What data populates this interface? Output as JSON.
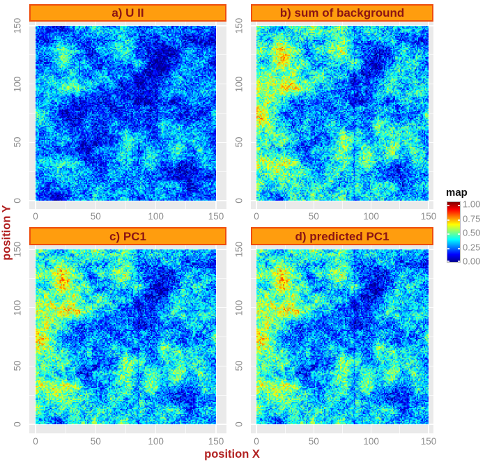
{
  "ui": {
    "strips": {
      "a": "a) U II",
      "b": "b) sum of background",
      "c": "c) PC1",
      "d": "d) predicted PC1"
    },
    "axes": {
      "x_title": "position X",
      "y_title": "position Y",
      "x_ticks": [
        "0",
        "50",
        "100",
        "150"
      ],
      "y_ticks": [
        "0",
        "50",
        "100",
        "150"
      ]
    },
    "legend": {
      "title": "map",
      "labels": [
        "1.00",
        "0.75",
        "0.50",
        "0.25",
        "0.00"
      ]
    },
    "colors": {
      "strip_fill": "#FF9D0E",
      "strip_border": "#EE4D0D",
      "strip_text": "#8B1414",
      "axis_title": "#B22222",
      "tick_label": "#8C8C8C",
      "panel_bg": "#EAEAEA",
      "legend_title": "#111111",
      "page_bg": "#FFFFFF"
    }
  },
  "chart_data": {
    "type": "heatmap",
    "layout": "2x2 facet grid, shared axes, single colorbar legend",
    "panels": [
      {
        "key": "a",
        "title": "a) U II",
        "description": "mostly low values (dark blue) with scattered cyan-green patches and rare orange specks; slightly warmer left edge"
      },
      {
        "key": "b",
        "title": "b) sum of background",
        "description": "higher overall; broad warm green-yellow region on left side with orange/red specks; faint dark vertical seam near x=85"
      },
      {
        "key": "c",
        "title": "c) PC1",
        "description": "warm yellow-green region on left, cyan speckle over blue elsewhere; faint vertical seam near x=85"
      },
      {
        "key": "d",
        "title": "d) predicted PC1",
        "description": "nearly identical to PC1 panel; faint vertical seam near x=85"
      }
    ],
    "x": {
      "label": "position X",
      "range": [
        0,
        150
      ],
      "ticks": [
        0,
        50,
        100,
        150
      ]
    },
    "y": {
      "label": "position Y",
      "range": [
        0,
        150
      ],
      "ticks": [
        0,
        50,
        100,
        150
      ]
    },
    "legend": {
      "title": "map",
      "range": [
        0,
        1
      ],
      "ticks": [
        1.0,
        0.75,
        0.5,
        0.25,
        0.0
      ]
    },
    "colormap": {
      "name": "jet-like",
      "stops": [
        {
          "at": 0.0,
          "color": "#00008F"
        },
        {
          "at": 0.125,
          "color": "#0000FF"
        },
        {
          "at": 0.375,
          "color": "#00FFFF"
        },
        {
          "at": 0.625,
          "color": "#FFFF00"
        },
        {
          "at": 0.875,
          "color": "#FF0000"
        },
        {
          "at": 1.0,
          "color": "#800000"
        }
      ]
    },
    "grid_size": 150,
    "render_params": {
      "shared_seed": 1337,
      "panels": {
        "a": {
          "seed": 11,
          "gain": 0.8,
          "level": 0.24,
          "warm": 0.18,
          "speck": 0.26,
          "seam": 0.9
        },
        "b": {
          "seed": 22,
          "gain": 0.9,
          "level": 0.33,
          "warm": 0.45,
          "speck": 0.28,
          "seam": 0.72
        },
        "c": {
          "seed": 33,
          "gain": 0.9,
          "level": 0.32,
          "warm": 0.5,
          "speck": 0.28,
          "seam": 0.72
        },
        "d": {
          "seed": 33,
          "gain": 0.9,
          "level": 0.32,
          "warm": 0.5,
          "speck": 0.28,
          "seam": 0.72
        }
      }
    }
  }
}
